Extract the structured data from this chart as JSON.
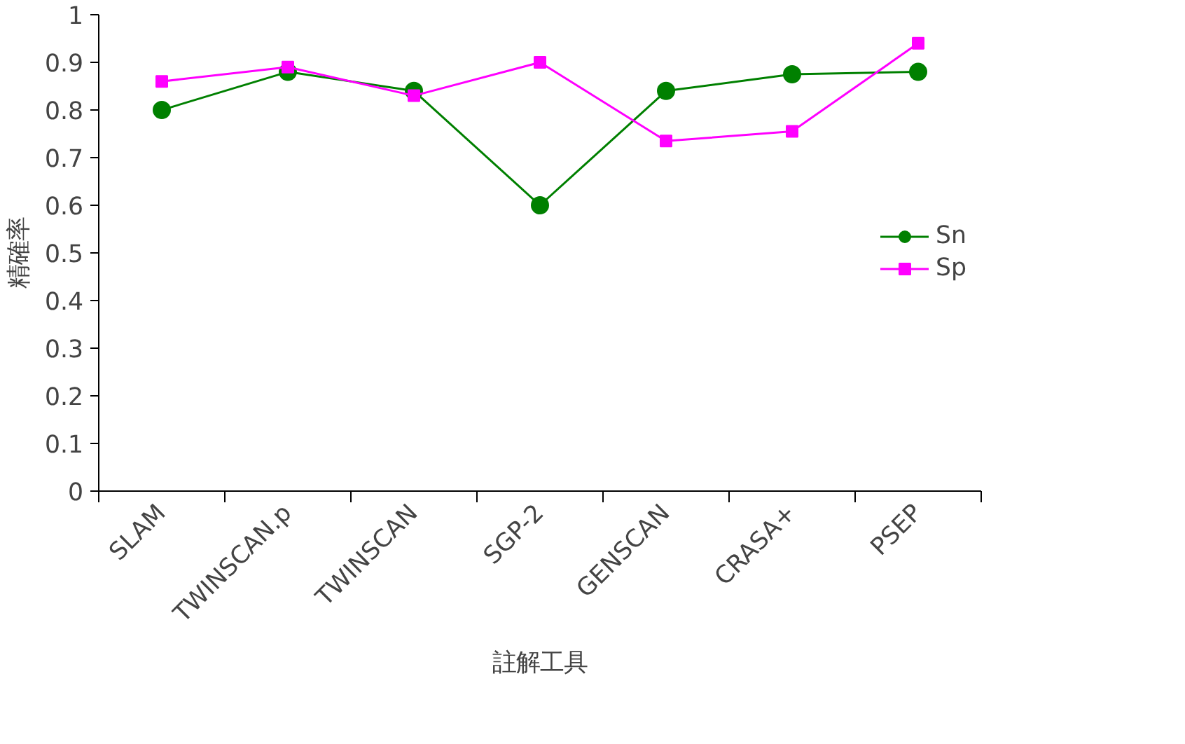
{
  "chart_data": {
    "type": "line",
    "xlabel": "註解工具",
    "ylabel": "精確率",
    "categories": [
      "SLAM",
      "TWINSCAN.p",
      "TWINSCAN",
      "SGP-2",
      "GENSCAN",
      "CRASA+",
      "PSEP"
    ],
    "series": [
      {
        "name": "Sn",
        "color": "#008000",
        "marker": "circle",
        "values": [
          0.8,
          0.88,
          0.84,
          0.6,
          0.84,
          0.875,
          0.88
        ]
      },
      {
        "name": "Sp",
        "color": "#ff00ff",
        "marker": "square",
        "values": [
          0.86,
          0.89,
          0.83,
          0.9,
          0.735,
          0.755,
          0.94
        ]
      }
    ],
    "ylim": [
      0,
      1
    ],
    "yticks": [
      0,
      0.1,
      0.2,
      0.3,
      0.4,
      0.5,
      0.6,
      0.7,
      0.8,
      0.9,
      1
    ],
    "grid": false,
    "legend": "right",
    "line_style": "solid"
  }
}
